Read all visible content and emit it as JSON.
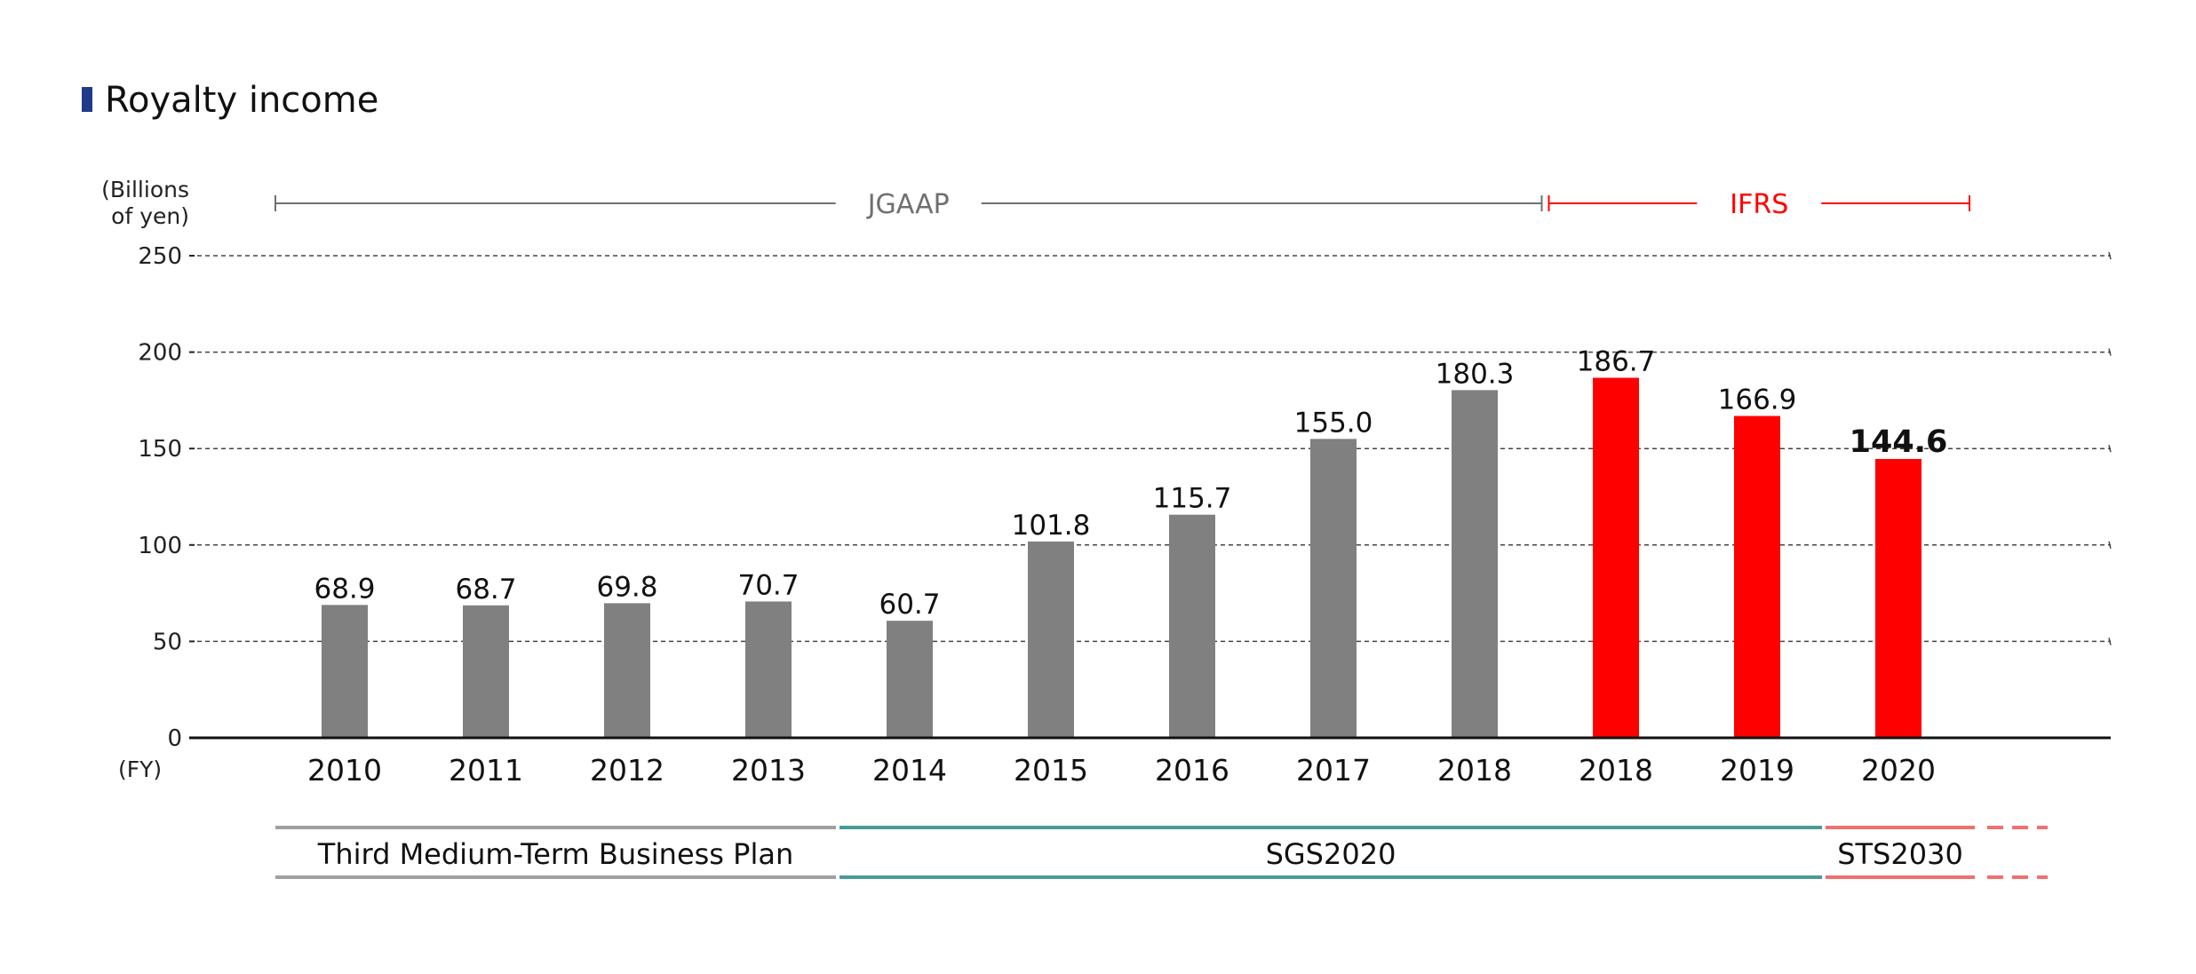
{
  "chart_data": {
    "type": "bar",
    "title": "Royalty income",
    "ylabel_line1": "(Billions",
    "ylabel_line2": "of yen)",
    "xlabel": "(FY)",
    "ylim": [
      0,
      250
    ],
    "yticks": [
      0,
      50,
      100,
      150,
      200,
      250
    ],
    "grid": true,
    "categories": [
      "2010",
      "2011",
      "2012",
      "2013",
      "2014",
      "2015",
      "2016",
      "2017",
      "2018",
      "2018",
      "2019",
      "2020"
    ],
    "values": [
      68.9,
      68.7,
      69.8,
      70.7,
      60.7,
      101.8,
      115.7,
      155.0,
      180.3,
      186.7,
      166.9,
      144.6
    ],
    "value_labels": [
      "68.9",
      "68.7",
      "69.8",
      "70.7",
      "60.7",
      "101.8",
      "115.7",
      "155.0",
      "180.3",
      "186.7",
      "166.9",
      "144.6"
    ],
    "highlighted_label_index": 11,
    "standards": [
      {
        "label": "JGAAP",
        "start_index": 0,
        "end_index": 8,
        "color": "#707070"
      },
      {
        "label": "IFRS",
        "start_index": 9,
        "end_index": 11,
        "color": "#ff0000"
      }
    ],
    "bar_colors": {
      "JGAAP": "#808080",
      "IFRS": "#ff0000"
    },
    "plans": [
      {
        "label": "Third Medium-Term Business Plan",
        "start_index": 0,
        "end_index": 3,
        "color": "#a0a0a0"
      },
      {
        "label": "SGS2020",
        "start_index": 4,
        "end_index": 11,
        "color": "#4a9a9a"
      },
      {
        "label": "STS2030",
        "start_index": 11,
        "end_index": 11,
        "color": "#f07070",
        "continues": true
      }
    ],
    "title_marker_color": "#1f3a8a"
  }
}
